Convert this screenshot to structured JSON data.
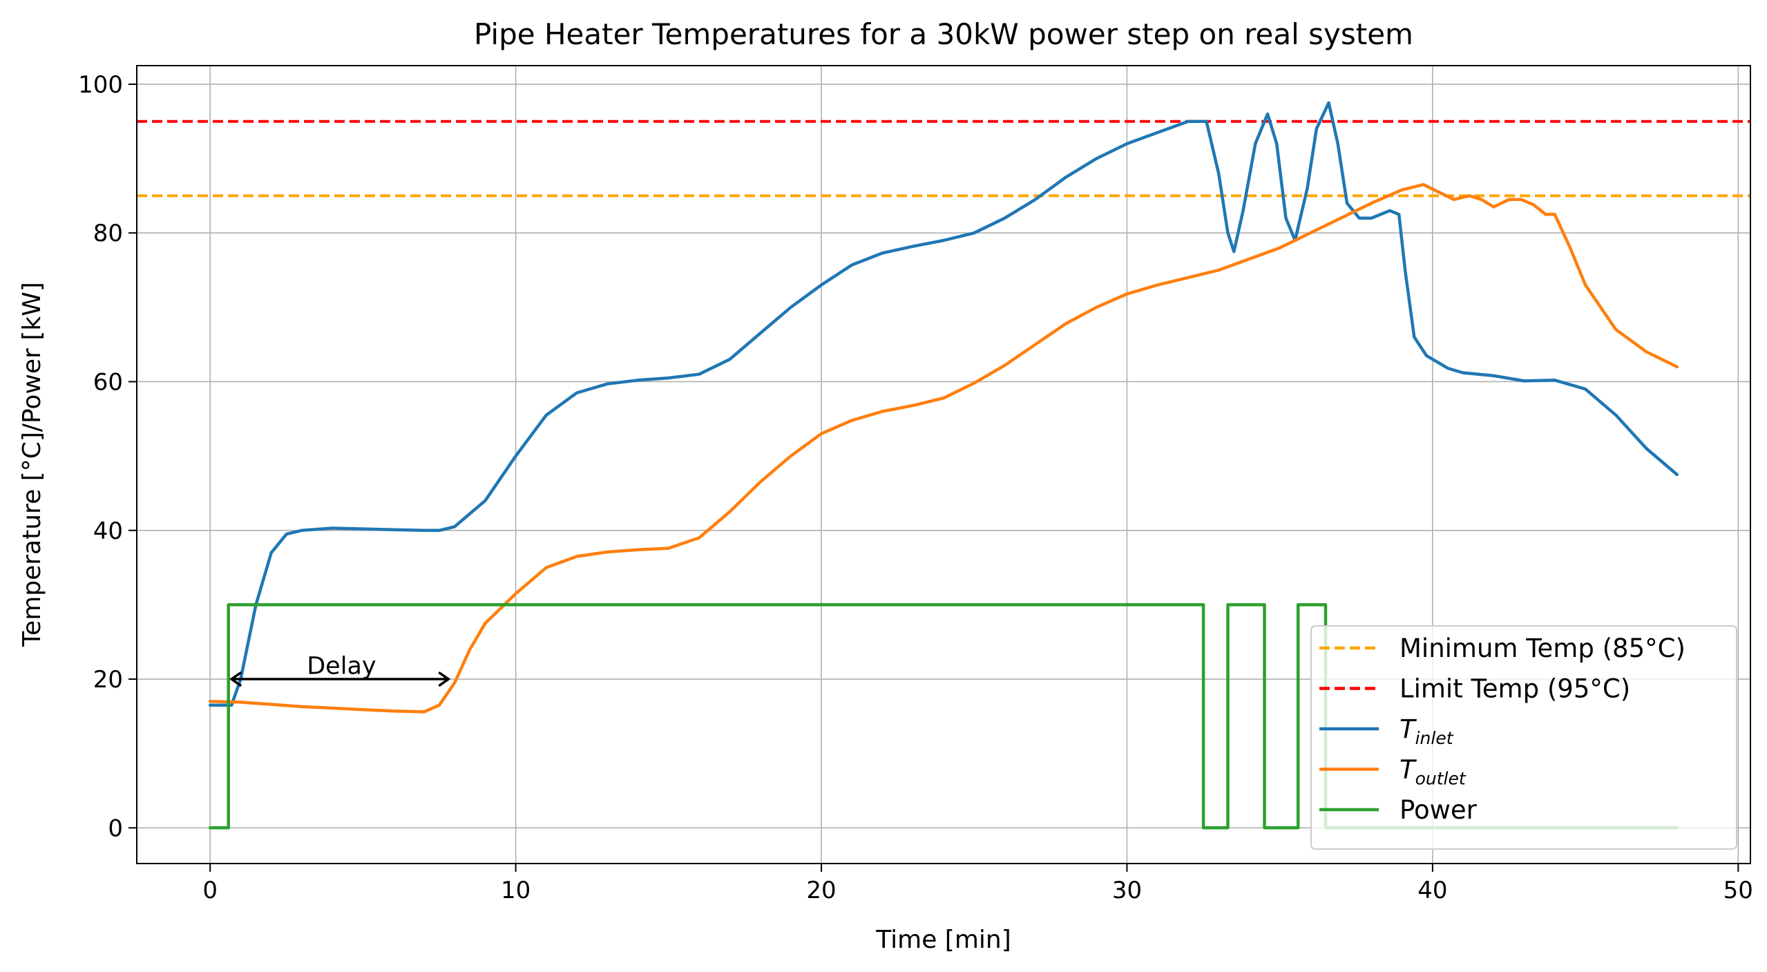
{
  "chart_data": {
    "type": "line",
    "title": "Pipe Heater Temperatures for a 30kW power step on real system",
    "xlabel": "Time [min]",
    "ylabel": "Temperature [°C]/Power [kW]",
    "xlim": [
      -2.4,
      50.4
    ],
    "ylim": [
      -4.8,
      102.5
    ],
    "xticks": [
      0,
      10,
      20,
      30,
      40,
      50
    ],
    "yticks": [
      0,
      20,
      40,
      60,
      80,
      100
    ],
    "grid": true,
    "legend_position": "lower-right",
    "hlines": [
      {
        "name": "Minimum Temp (85°C)",
        "y": 85,
        "color": "#ffa500",
        "style": "dashed"
      },
      {
        "name": "Limit Temp (95°C)",
        "y": 95,
        "color": "#ff0000",
        "style": "dashed"
      }
    ],
    "series": [
      {
        "name": "T",
        "subscript": "inlet",
        "color": "#1f77b4",
        "x": [
          0,
          0.7,
          1.0,
          1.5,
          2.0,
          2.5,
          3.0,
          4.0,
          5.0,
          6.0,
          7.0,
          7.5,
          8.0,
          9.0,
          10.0,
          11.0,
          12.0,
          13.0,
          14.0,
          15.0,
          16.0,
          17.0,
          18.0,
          19.0,
          20.0,
          21.0,
          22.0,
          23.0,
          24.0,
          25.0,
          26.0,
          27.0,
          28.0,
          29.0,
          30.0,
          31.0,
          32.0,
          32.6,
          33.0,
          33.3,
          33.5,
          33.8,
          34.2,
          34.6,
          34.9,
          35.2,
          35.5,
          35.9,
          36.2,
          36.6,
          36.9,
          37.2,
          37.6,
          38.0,
          38.3,
          38.6,
          38.9,
          39.1,
          39.4,
          39.8,
          40.5,
          41.0,
          42.0,
          43.0,
          44.0,
          45.0,
          46.0,
          47.0,
          48.0
        ],
        "y": [
          16.5,
          16.5,
          20,
          30,
          37,
          39.5,
          40,
          40.3,
          40.2,
          40.1,
          40,
          40,
          40.5,
          44,
          50,
          55.5,
          58.5,
          59.7,
          60.2,
          60.5,
          61,
          63,
          66.5,
          70,
          73,
          75.7,
          77.3,
          78.2,
          79,
          80,
          82,
          84.5,
          87.5,
          90,
          92,
          93.5,
          95,
          95,
          88,
          80,
          77.5,
          83,
          92,
          96,
          92,
          82,
          79,
          86,
          94,
          97.5,
          92,
          84,
          82,
          82,
          82.5,
          83,
          82.5,
          75,
          66,
          63.5,
          61.8,
          61.2,
          60.8,
          60.1,
          60.2,
          59,
          55.5,
          51,
          47.5
        ]
      },
      {
        "name": "T",
        "subscript": "outlet",
        "color": "#ff7f0e",
        "x": [
          0,
          1,
          2,
          3,
          4,
          5,
          6,
          7.0,
          7.5,
          8.0,
          8.5,
          9.0,
          10.0,
          11.0,
          12.0,
          13.0,
          14.0,
          15.0,
          16.0,
          17.0,
          18.0,
          19.0,
          20.0,
          21.0,
          22.0,
          23.0,
          24.0,
          25.0,
          26.0,
          27.0,
          28.0,
          29.0,
          30.0,
          31.0,
          32.0,
          33.0,
          34.0,
          35.0,
          36.0,
          37.0,
          38.0,
          39.0,
          39.7,
          40.2,
          40.7,
          41.2,
          41.6,
          42.0,
          42.5,
          42.9,
          43.3,
          43.7,
          44.0,
          44.5,
          45.0,
          46.0,
          47.0,
          48.0
        ],
        "y": [
          17,
          16.9,
          16.6,
          16.3,
          16.1,
          15.9,
          15.7,
          15.6,
          16.5,
          19.5,
          24,
          27.5,
          31.5,
          35,
          36.5,
          37.1,
          37.4,
          37.6,
          39,
          42.5,
          46.5,
          50,
          53,
          54.8,
          56,
          56.8,
          57.8,
          59.8,
          62.2,
          65,
          67.8,
          70,
          71.8,
          73,
          74,
          75,
          76.5,
          78,
          80,
          82,
          84,
          85.8,
          86.5,
          85.5,
          84.5,
          85,
          84.5,
          83.5,
          84.5,
          84.5,
          83.8,
          82.5,
          82.5,
          78,
          73,
          67,
          64,
          62
        ]
      },
      {
        "name": "Power",
        "color": "#2ca02c",
        "step": true,
        "x": [
          0,
          0.6,
          0.6,
          32.5,
          32.5,
          33.3,
          33.3,
          34.5,
          34.5,
          35.6,
          35.6,
          36.5,
          36.5,
          48.0
        ],
        "y": [
          0,
          0,
          30,
          30,
          0,
          0,
          30,
          30,
          0,
          0,
          30,
          30,
          0,
          0
        ]
      }
    ],
    "annotations": [
      {
        "text": "Delay",
        "x": 4.3,
        "y": 21.8,
        "arrow_from": [
          0.7,
          20
        ],
        "arrow_to": [
          7.8,
          20
        ]
      }
    ]
  }
}
